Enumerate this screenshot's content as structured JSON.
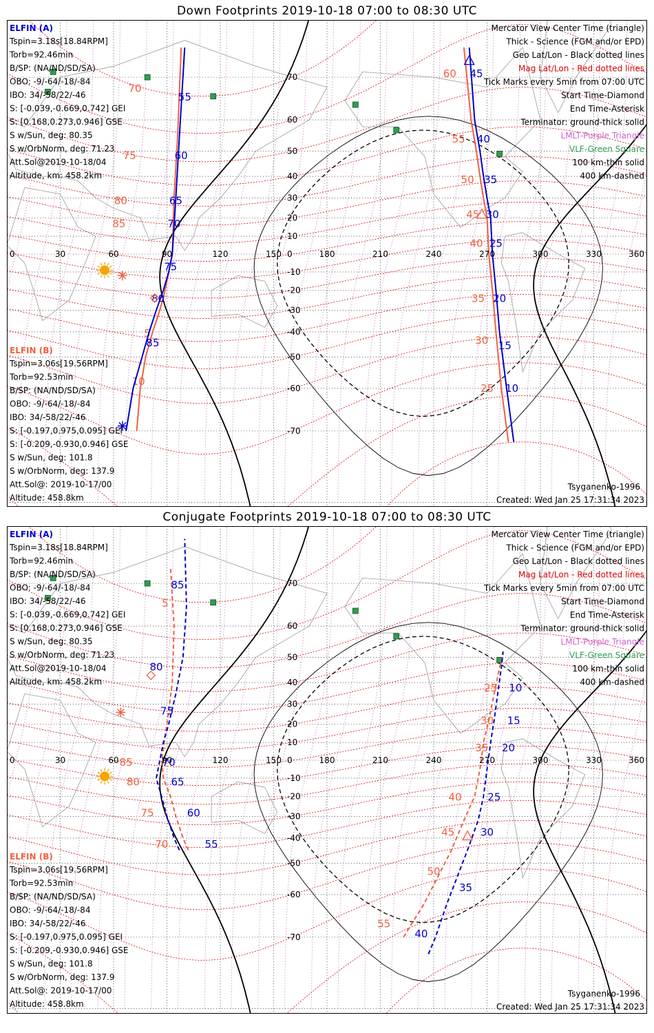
{
  "colors": {
    "elfin_a": "#0000cc",
    "elfin_b": "#f06040",
    "geo_grid": "#000000",
    "mag_grid": "#dd0000",
    "lmlt": "#cc66cc",
    "vlf": "#2e9e4f",
    "sun": "#f5a500",
    "coast": "#999999"
  },
  "lon_ticks": [
    "0",
    "30",
    "60",
    "90",
    "120",
    "150",
    "180",
    "210",
    "240",
    "270",
    "300",
    "330",
    "360"
  ],
  "lat_ticks": [
    "70",
    "60",
    "50",
    "40",
    "30",
    "20",
    "10",
    "0",
    "-10",
    "-20",
    "-30",
    "-40",
    "-50",
    "-60",
    "-70"
  ],
  "panels": [
    {
      "title": "Down Footprints 2019-10-18 07:00 to 08:30 UTC",
      "legend": [
        "Mercator View Center Time (triangle)",
        "Thick - Science (FGM and/or EPD)",
        "Geo Lat/Lon - Black dotted lines",
        "Mag Lat/Lon - Red dotted lines",
        "Tick Marks every 5min from 07:00 UTC",
        "Start Time-Diamond",
        "End Time-Asterisk",
        "Terminator: ground-thick solid",
        "LMLT-Purple Triangle",
        "VLF-Green Square",
        "100 km-thin solid",
        "400 km-dashed"
      ],
      "elfin_a": {
        "name": "ELFIN (A)",
        "lines": [
          "Tspin=3.18s[18.84RPM]",
          "Torb=92.46min",
          "B/SP: (NA/ND/SD/SA)",
          "OBO: -9/-64/-18/-84",
          "IBO: 34/-58/22/-46",
          "S: [-0.039,-0.669,0.742] GEI",
          "S: [0.168,0.273,0.946] GSE",
          "S w/Sun, deg: 80.35",
          "S w/OrbNorm, deg: 71.23",
          "Att.Sol@2019-10-18/04",
          "Altitude, km: 458.2km"
        ]
      },
      "elfin_b": {
        "name": "ELFIN (B)",
        "lines": [
          "Tspin=3.06s[19.56RPM]",
          "Torb=92.53min",
          "B/SP: (NA/ND/SD/SA)",
          "OBO: -9/-64/-18/-84",
          "IBO: 34/-58/22/-46",
          "S: [-0.197,0.975,0.095] GEI",
          "S: [-0.209,-0.930,0.946] GSE",
          "S w/Sun, deg: 101.8",
          "S w/OrbNorm, deg: 137.9",
          "Att.Sol@: 2019-10-17/00",
          "Altitude: 458.8km"
        ]
      },
      "model": "Tsyganenko-1996",
      "created": "Created: Wed Jan 25 17:31:34 2023",
      "tracks": {
        "a_west": {
          "lon": [
            67,
            71,
            76,
            80,
            84,
            88,
            91,
            93,
            95,
            97,
            100
          ],
          "lat": [
            -70,
            -60,
            -50,
            -40,
            -30,
            -20,
            -10,
            0,
            30,
            55,
            75
          ],
          "ticks": [
            {
              "t": "55",
              "lon": 100,
              "lat": 65
            },
            {
              "t": "60",
              "lon": 98,
              "lat": 47
            },
            {
              "t": "65",
              "lon": 95,
              "lat": 27
            },
            {
              "t": "70",
              "lon": 94,
              "lat": 15
            },
            {
              "t": "75",
              "lon": 92,
              "lat": -9
            },
            {
              "t": "80",
              "lon": 85,
              "lat": -26
            },
            {
              "t": "85",
              "lon": 82,
              "lat": -46
            }
          ]
        },
        "b_west": {
          "lon": [
            73,
            75,
            78,
            82,
            86,
            89,
            91,
            93,
            94,
            96,
            98
          ],
          "lat": [
            -70,
            -60,
            -50,
            -40,
            -30,
            -20,
            -10,
            0,
            30,
            55,
            75
          ],
          "ticks": [
            {
              "t": "70",
              "lon": 72,
              "lat": 67
            },
            {
              "t": "75",
              "lon": 69,
              "lat": 47
            },
            {
              "t": "80",
              "lon": 64,
              "lat": 27
            },
            {
              "t": "85",
              "lon": 63,
              "lat": 15
            },
            {
              "t": "5",
              "lon": 79,
              "lat": -42
            },
            {
              "t": "10",
              "lon": 74,
              "lat": -59
            }
          ]
        },
        "a_east": {
          "lon": [
            260,
            263,
            266,
            268,
            270,
            272,
            273,
            275,
            277,
            281,
            285
          ],
          "lat": [
            75,
            60,
            50,
            40,
            30,
            20,
            0,
            -20,
            -40,
            -60,
            -72
          ],
          "ticks": [
            {
              "t": "45",
              "lon": 264,
              "lat": 70
            },
            {
              "t": "40",
              "lon": 268,
              "lat": 53
            },
            {
              "t": "35",
              "lon": 272,
              "lat": 37
            },
            {
              "t": "30",
              "lon": 273,
              "lat": 20
            },
            {
              "t": "25",
              "lon": 275,
              "lat": 4
            },
            {
              "t": "20",
              "lon": 277,
              "lat": -26
            },
            {
              "t": "15",
              "lon": 280,
              "lat": -47
            },
            {
              "t": "10",
              "lon": 284,
              "lat": -61
            }
          ]
        },
        "b_east": {
          "lon": [
            257,
            261,
            264,
            266,
            268,
            270,
            271,
            273,
            275,
            278,
            282
          ],
          "lat": [
            75,
            60,
            50,
            40,
            30,
            20,
            0,
            -20,
            -40,
            -60,
            -72
          ],
          "ticks": [
            {
              "t": "60",
              "lon": 249,
              "lat": 70
            },
            {
              "t": "55",
              "lon": 254,
              "lat": 53
            },
            {
              "t": "50",
              "lon": 259,
              "lat": 37
            },
            {
              "t": "45",
              "lon": 262,
              "lat": 20
            },
            {
              "t": "40",
              "lon": 264,
              "lat": 4
            },
            {
              "t": "35",
              "lon": 265,
              "lat": -26
            },
            {
              "t": "30",
              "lon": 267,
              "lat": -45
            },
            {
              "t": "25",
              "lon": 270,
              "lat": -61
            }
          ]
        }
      }
    },
    {
      "title": "Conjugate Footprints 2019-10-18 07:00 to 08:30 UTC",
      "legend": [
        "Mercator View Center Time (triangle)",
        "Thick - Science (FGM and/or EPD)",
        "Geo Lat/Lon - Black dotted lines",
        "Mag Lat/Lon - Red dotted lines",
        "Tick Marks every 5min from 07:00 UTC",
        "Start Time-Diamond",
        "End Time-Asterisk",
        "Terminator: ground-thick solid",
        "LMLT-Purple Triangle",
        "VLF-Green Square",
        "100 km-thin solid",
        "400 km-dashed"
      ],
      "elfin_a": {
        "name": "ELFIN (A)",
        "lines": [
          "Tspin=3.18s[18.84RPM]",
          "Torb=92.46min",
          "B/SP: (NA/ND/SD/SA)",
          "OBO: -9/-64/-18/-84",
          "IBO: 34/-58/22/-46",
          "S: [-0.039,-0.669,0.742] GEI",
          "S: [0.168,0.273,0.946] GSE",
          "S w/Sun, deg: 80.35",
          "S w/OrbNorm, deg: 71.23",
          "Att.Sol@2019-10-18/04",
          "Altitude, km: 458.2km"
        ]
      },
      "elfin_b": {
        "name": "ELFIN (B)",
        "lines": [
          "Tspin=3.06s[19.56RPM]",
          "Torb=92.53min",
          "B/SP: (NA/ND/SD/SA)",
          "OBO: -9/-64/-18/-84",
          "IBO: 34/-58/22/-46",
          "S: [-0.197,0.975,0.095] GEI",
          "S: [-0.209,-0.930,0.946] GSE",
          "S w/Sun, deg: 101.8",
          "S w/OrbNorm, deg: 137.9",
          "Att.Sol@: 2019-10-17/00",
          "Altitude: 458.8km"
        ]
      },
      "model": "Tsyganenko-1996",
      "created": "Created: Wed Jan 25 17:31:34 2023",
      "tracks": {
        "a_west": {
          "lon": [
            97,
            94,
            90,
            87,
            84,
            86,
            88,
            91,
            95,
            99,
            101,
            100
          ],
          "lat": [
            -45,
            -40,
            -30,
            -20,
            -10,
            0,
            10,
            20,
            35,
            50,
            65,
            77
          ],
          "ticks": [
            {
              "t": "85",
              "lon": 96,
              "lat": 69
            },
            {
              "t": "80",
              "lon": 84,
              "lat": 45
            },
            {
              "t": "75",
              "lon": 90,
              "lat": 25
            },
            {
              "t": "70",
              "lon": 91,
              "lat": -3
            },
            {
              "t": "65",
              "lon": 96,
              "lat": -14
            },
            {
              "t": "60",
              "lon": 105,
              "lat": -30
            },
            {
              "t": "55",
              "lon": 115,
              "lat": -44
            }
          ]
        },
        "b_west": {
          "lon": [
            102,
            99,
            95,
            92,
            88,
            87,
            90,
            93,
            94,
            92
          ],
          "lat": [
            -45,
            -40,
            -30,
            -20,
            -10,
            0,
            20,
            40,
            60,
            73
          ],
          "ticks": [
            {
              "t": "5",
              "lon": 89,
              "lat": 65
            },
            {
              "t": "85",
              "lon": 67,
              "lat": -3
            },
            {
              "t": "80",
              "lon": 71,
              "lat": -14
            },
            {
              "t": "75",
              "lon": 79,
              "lat": -30
            },
            {
              "t": "70",
              "lon": 87,
              "lat": -44
            }
          ]
        },
        "a_east": {
          "lon": [
            237,
            241,
            247,
            253,
            259,
            265,
            268,
            270,
            272,
            274,
            276,
            278,
            279
          ],
          "lat": [
            -73,
            -70,
            -63,
            -55,
            -45,
            -32,
            -20,
            -5,
            10,
            22,
            35,
            46,
            52
          ],
          "ticks": [
            {
              "t": "10",
              "lon": 286,
              "lat": 36
            },
            {
              "t": "15",
              "lon": 285,
              "lat": 20
            },
            {
              "t": "20",
              "lon": 282,
              "lat": 5
            },
            {
              "t": "25",
              "lon": 274,
              "lat": -22
            },
            {
              "t": "30",
              "lon": 270,
              "lat": -39
            },
            {
              "t": "35",
              "lon": 258,
              "lat": -59
            },
            {
              "t": "40",
              "lon": 233,
              "lat": -70
            }
          ]
        },
        "b_east": {
          "lon": [
            223,
            228,
            234,
            242,
            250,
            257,
            263,
            266,
            268,
            271,
            274,
            277,
            279
          ],
          "lat": [
            -70,
            -67,
            -63,
            -55,
            -45,
            -32,
            -20,
            -5,
            10,
            22,
            35,
            46,
            52
          ],
          "ticks": [
            {
              "t": "25",
              "lon": 272,
              "lat": 36
            },
            {
              "t": "30",
              "lon": 270,
              "lat": 20
            },
            {
              "t": "35",
              "lon": 267,
              "lat": 5
            },
            {
              "t": "40",
              "lon": 252,
              "lat": -22
            },
            {
              "t": "45",
              "lon": 248,
              "lat": -39
            },
            {
              "t": "50",
              "lon": 240,
              "lat": -54
            },
            {
              "t": "55",
              "lon": 212,
              "lat": -68
            }
          ]
        }
      }
    }
  ]
}
